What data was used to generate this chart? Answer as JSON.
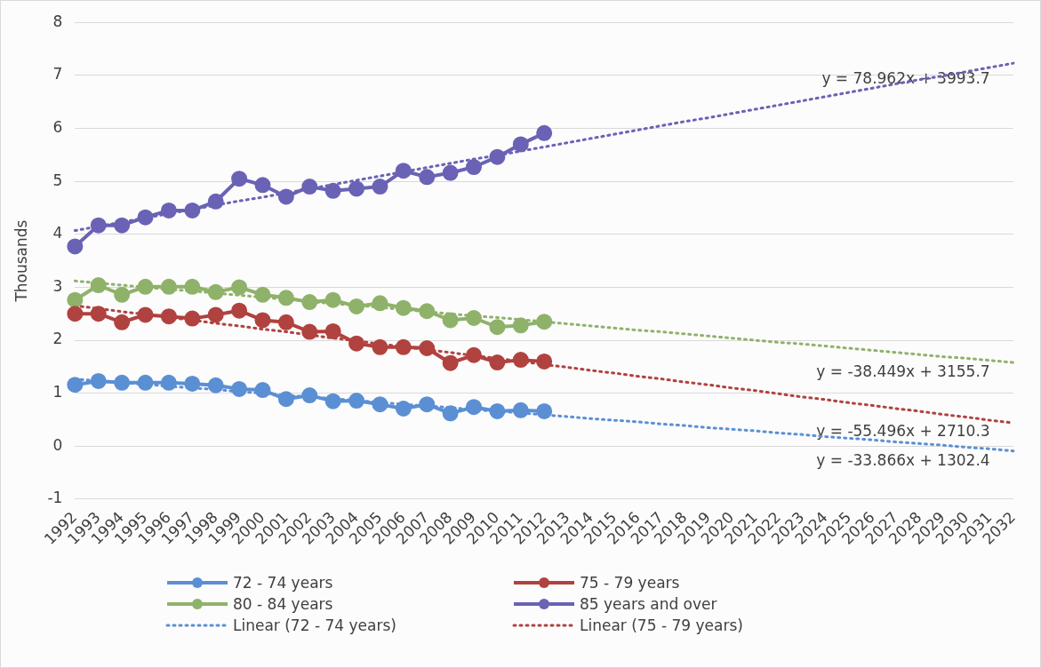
{
  "chart_data": {
    "type": "line",
    "ylabel": "Thousands",
    "categories": [
      "1992",
      "1993",
      "1994",
      "1995",
      "1996",
      "1997",
      "1998",
      "1999",
      "2000",
      "2001",
      "2002",
      "2003",
      "2004",
      "2005",
      "2006",
      "2007",
      "2008",
      "2009",
      "2010",
      "2011",
      "2012",
      "2013",
      "2014",
      "2015",
      "2016",
      "2017",
      "2018",
      "2019",
      "2020",
      "2021",
      "2022",
      "2023",
      "2024",
      "2025",
      "2026",
      "2027",
      "2028",
      "2029",
      "2030",
      "2031",
      "2032"
    ],
    "series": [
      {
        "name": "72 - 74 years",
        "color": "#5b8fd4",
        "marker": "circle",
        "values": [
          1.16,
          1.23,
          1.2,
          1.2,
          1.2,
          1.18,
          1.15,
          1.08,
          1.06,
          0.89,
          0.96,
          0.85,
          0.86,
          0.79,
          0.71,
          0.79,
          0.62,
          0.74,
          0.66,
          0.68,
          0.66,
          null,
          null,
          null,
          null,
          null,
          null,
          null,
          null,
          null,
          null,
          null,
          null,
          null,
          null,
          null,
          null,
          null,
          null,
          null,
          null
        ]
      },
      {
        "name": "75 - 79 years",
        "color": "#b0423f",
        "marker": "circle",
        "values": [
          2.5,
          2.5,
          2.34,
          2.48,
          2.45,
          2.41,
          2.48,
          2.56,
          2.38,
          2.34,
          2.16,
          2.17,
          1.94,
          1.87,
          1.87,
          1.85,
          1.57,
          1.72,
          1.58,
          1.63,
          1.6,
          null,
          null,
          null,
          null,
          null,
          null,
          null,
          null,
          null,
          null,
          null,
          null,
          null,
          null,
          null,
          null,
          null,
          null,
          null,
          null
        ]
      },
      {
        "name": "80 - 84 years",
        "color": "#8fb26a",
        "marker": "circle",
        "values": [
          2.76,
          3.04,
          2.86,
          3.01,
          3.01,
          3.01,
          2.91,
          3.0,
          2.86,
          2.8,
          2.72,
          2.76,
          2.64,
          2.7,
          2.61,
          2.55,
          2.38,
          2.42,
          2.25,
          2.28,
          2.35,
          null,
          null,
          null,
          null,
          null,
          null,
          null,
          null,
          null,
          null,
          null,
          null,
          null,
          null,
          null,
          null,
          null,
          null,
          null,
          null
        ]
      },
      {
        "name": "85 years and over",
        "color": "#6a62b5",
        "marker": "circle",
        "values": [
          3.77,
          4.17,
          4.17,
          4.32,
          4.45,
          4.45,
          4.62,
          5.05,
          4.93,
          4.71,
          4.9,
          4.82,
          4.86,
          4.9,
          5.2,
          5.08,
          5.16,
          5.27,
          5.46,
          5.7,
          5.91,
          null,
          null,
          null,
          null,
          null,
          null,
          null,
          null,
          null,
          null,
          null,
          null,
          null,
          null,
          null,
          null,
          null,
          null,
          null,
          null
        ]
      },
      {
        "name": "Linear (72 - 74 years)",
        "type": "line",
        "color": "#5b8fd4",
        "marker": "none",
        "line_style": "dotted",
        "values": [
          1.27,
          1.23,
          1.2,
          1.17,
          1.13,
          1.1,
          1.07,
          1.03,
          1.0,
          0.96,
          0.93,
          0.9,
          0.86,
          0.83,
          0.79,
          0.76,
          0.73,
          0.69,
          0.66,
          0.63,
          0.59,
          0.56,
          0.52,
          0.49,
          0.46,
          0.42,
          0.39,
          0.35,
          0.32,
          0.29,
          0.25,
          0.22,
          0.18,
          0.15,
          0.12,
          0.08,
          0.05,
          0.02,
          -0.02,
          -0.05,
          -0.09
        ]
      },
      {
        "name": "Linear (75 - 79 years)",
        "type": "line",
        "color": "#b0423f",
        "marker": "none",
        "line_style": "dotted",
        "values": [
          2.65,
          2.6,
          2.54,
          2.49,
          2.43,
          2.38,
          2.32,
          2.27,
          2.21,
          2.16,
          2.1,
          2.04,
          1.99,
          1.93,
          1.88,
          1.82,
          1.77,
          1.71,
          1.66,
          1.6,
          1.54,
          1.49,
          1.43,
          1.38,
          1.32,
          1.27,
          1.21,
          1.16,
          1.1,
          1.05,
          0.99,
          0.93,
          0.88,
          0.82,
          0.77,
          0.71,
          0.66,
          0.6,
          0.55,
          0.49,
          0.44
        ]
      },
      {
        "type": "line",
        "color": "#8fb26a",
        "marker": "none",
        "line_style": "dotted",
        "values": [
          3.12,
          3.08,
          3.04,
          3.0,
          2.96,
          2.93,
          2.89,
          2.85,
          2.81,
          2.77,
          2.73,
          2.69,
          2.66,
          2.62,
          2.58,
          2.54,
          2.5,
          2.46,
          2.43,
          2.39,
          2.35,
          2.31,
          2.27,
          2.23,
          2.19,
          2.16,
          2.12,
          2.08,
          2.04,
          2.0,
          1.96,
          1.93,
          1.89,
          1.85,
          1.81,
          1.77,
          1.73,
          1.69,
          1.66,
          1.62,
          1.58
        ]
      },
      {
        "type": "line",
        "color": "#6a62b5",
        "marker": "none",
        "line_style": "dotted",
        "values": [
          4.07,
          4.15,
          4.23,
          4.31,
          4.39,
          4.47,
          4.55,
          4.63,
          4.7,
          4.78,
          4.86,
          4.94,
          5.02,
          5.1,
          5.18,
          5.26,
          5.34,
          5.42,
          5.49,
          5.57,
          5.65,
          5.73,
          5.81,
          5.89,
          5.97,
          6.05,
          6.13,
          6.2,
          6.28,
          6.36,
          6.44,
          6.52,
          6.6,
          6.68,
          6.76,
          6.84,
          6.92,
          6.99,
          7.07,
          7.15,
          7.23
        ]
      }
    ],
    "ylim": [
      -1,
      8
    ],
    "yticks": [
      -1,
      0,
      1,
      2,
      3,
      4,
      5,
      6,
      7,
      8
    ],
    "grid": "y",
    "legend": "bottom",
    "annotations": [
      {
        "text": "y = 78.962x + 3993.7",
        "x": "2031",
        "y": 7.15
      },
      {
        "text": "y = -38.449x + 3155.7",
        "x": "2031",
        "y": 1.62
      },
      {
        "text": "y = -55.496x + 2710.3",
        "x": "2031",
        "y": 0.5
      },
      {
        "text": "y = -33.866x + 1302.4",
        "x": "2031",
        "y": -0.06
      }
    ]
  }
}
